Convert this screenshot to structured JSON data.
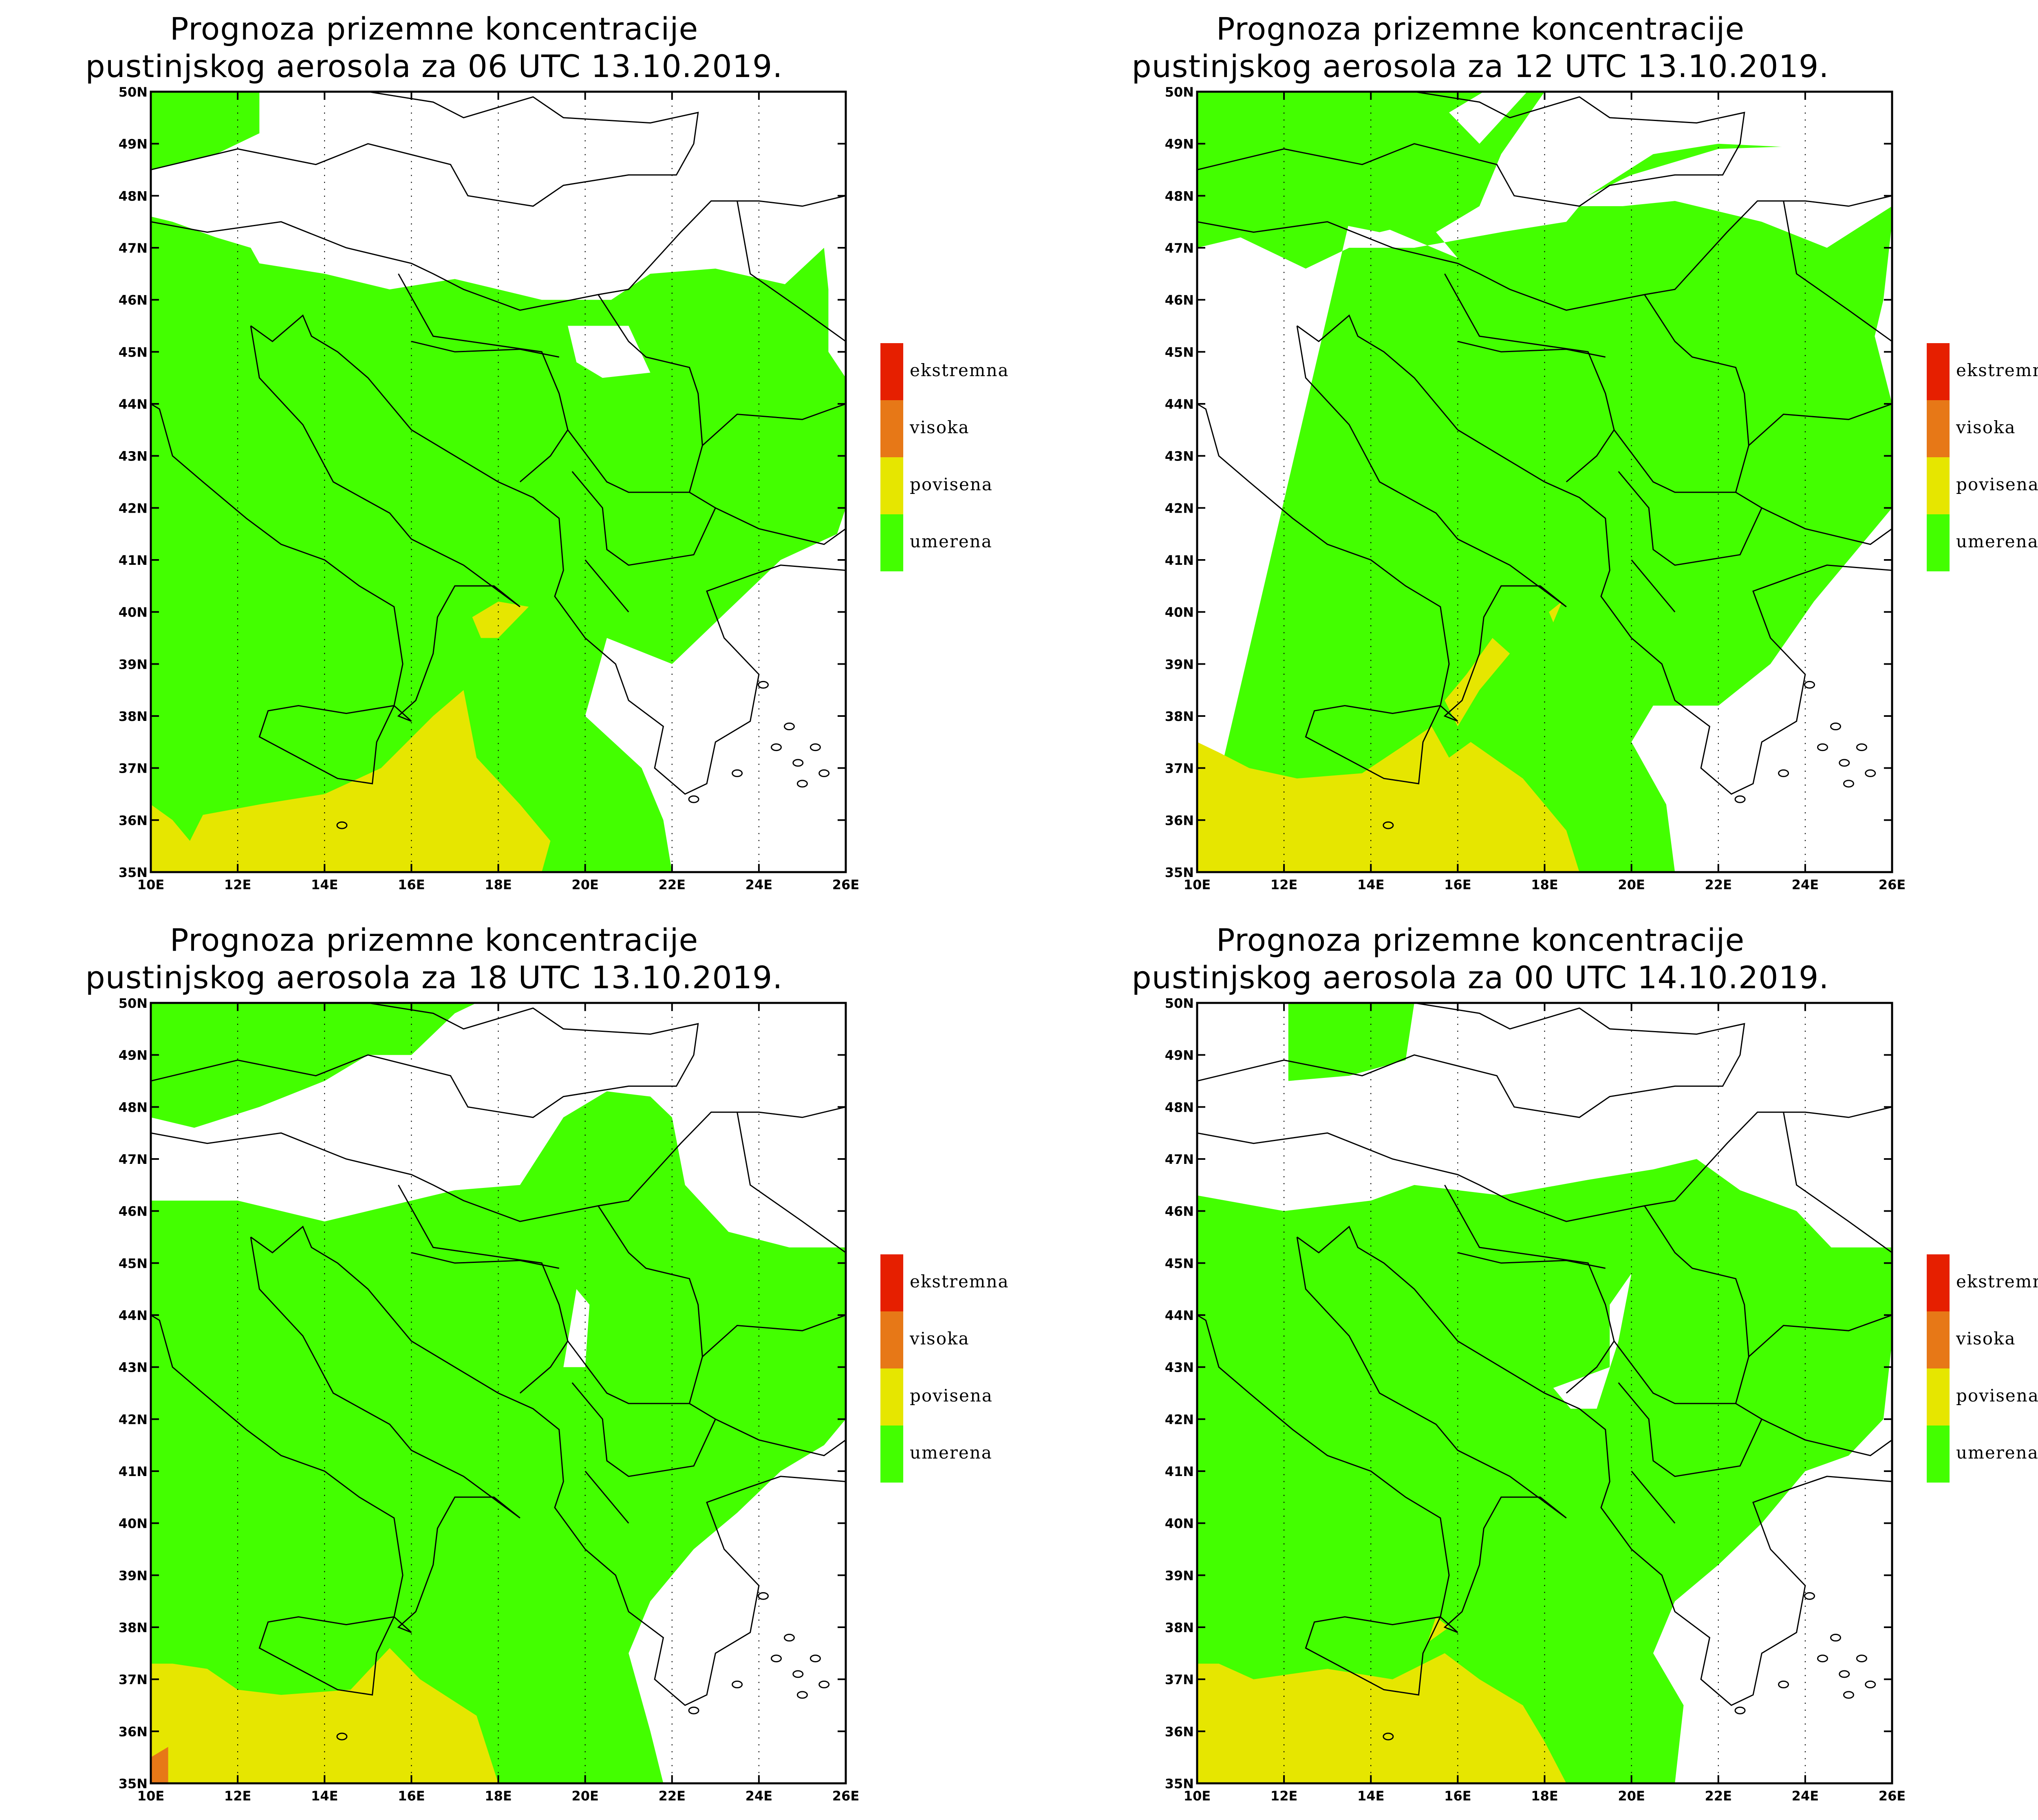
{
  "colors": {
    "umerena": "#43ff00",
    "povisena": "#e6e600",
    "visoka": "#e77817",
    "ekstremna": "#e61f00",
    "none": "#ffffff",
    "boundary": "#000000"
  },
  "legend": [
    {
      "label": "ekstremna",
      "color": "#e61f00"
    },
    {
      "label": "visoka",
      "color": "#e77817"
    },
    {
      "label": "povisena",
      "color": "#e6e600"
    },
    {
      "label": "umerena",
      "color": "#43ff00"
    }
  ],
  "axes": {
    "x_labels": [
      "10E",
      "12E",
      "14E",
      "16E",
      "18E",
      "20E",
      "22E",
      "24E",
      "26E"
    ],
    "y_labels": [
      "35N",
      "36N",
      "37N",
      "38N",
      "39N",
      "40N",
      "41N",
      "42N",
      "43N",
      "44N",
      "45N",
      "46N",
      "47N",
      "48N",
      "49N",
      "50N"
    ],
    "lon_range": [
      10,
      26
    ],
    "lat_range": [
      35,
      50
    ]
  },
  "panels": [
    {
      "title_line1": "Prognoza prizemne koncentracije",
      "title_line2": "pustinjskog aerosola za 06 UTC 13.10.2019."
    },
    {
      "title_line1": "Prognoza prizemne koncentracije",
      "title_line2": "pustinjskog aerosola za 12 UTC 13.10.2019."
    },
    {
      "title_line1": "Prognoza prizemne koncentracije",
      "title_line2": "pustinjskog aerosola za 18 UTC 13.10.2019."
    },
    {
      "title_line1": "Prognoza prizemne koncentracije",
      "title_line2": "pustinjskog aerosola za 00 UTC 14.10.2019."
    }
  ]
}
